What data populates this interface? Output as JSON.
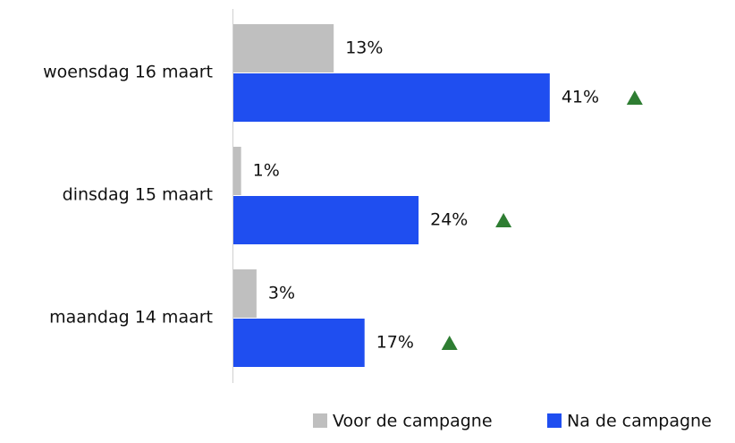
{
  "chart_data": {
    "type": "hbar",
    "categories": [
      "woensdag 16 maart",
      "dinsdag 15 maart",
      "maandag 14 maart"
    ],
    "series": [
      {
        "name": "Voor de campagne",
        "color": "#bfbfbf",
        "values": [
          13,
          1,
          3
        ],
        "value_labels": [
          "13%",
          "1%",
          "3%"
        ]
      },
      {
        "name": "Na de campagne",
        "color": "#1f4ef0",
        "values": [
          41,
          24,
          17
        ],
        "value_labels": [
          "41%",
          "24%",
          "17%"
        ]
      }
    ],
    "marker_color": "#2e7d32"
  }
}
